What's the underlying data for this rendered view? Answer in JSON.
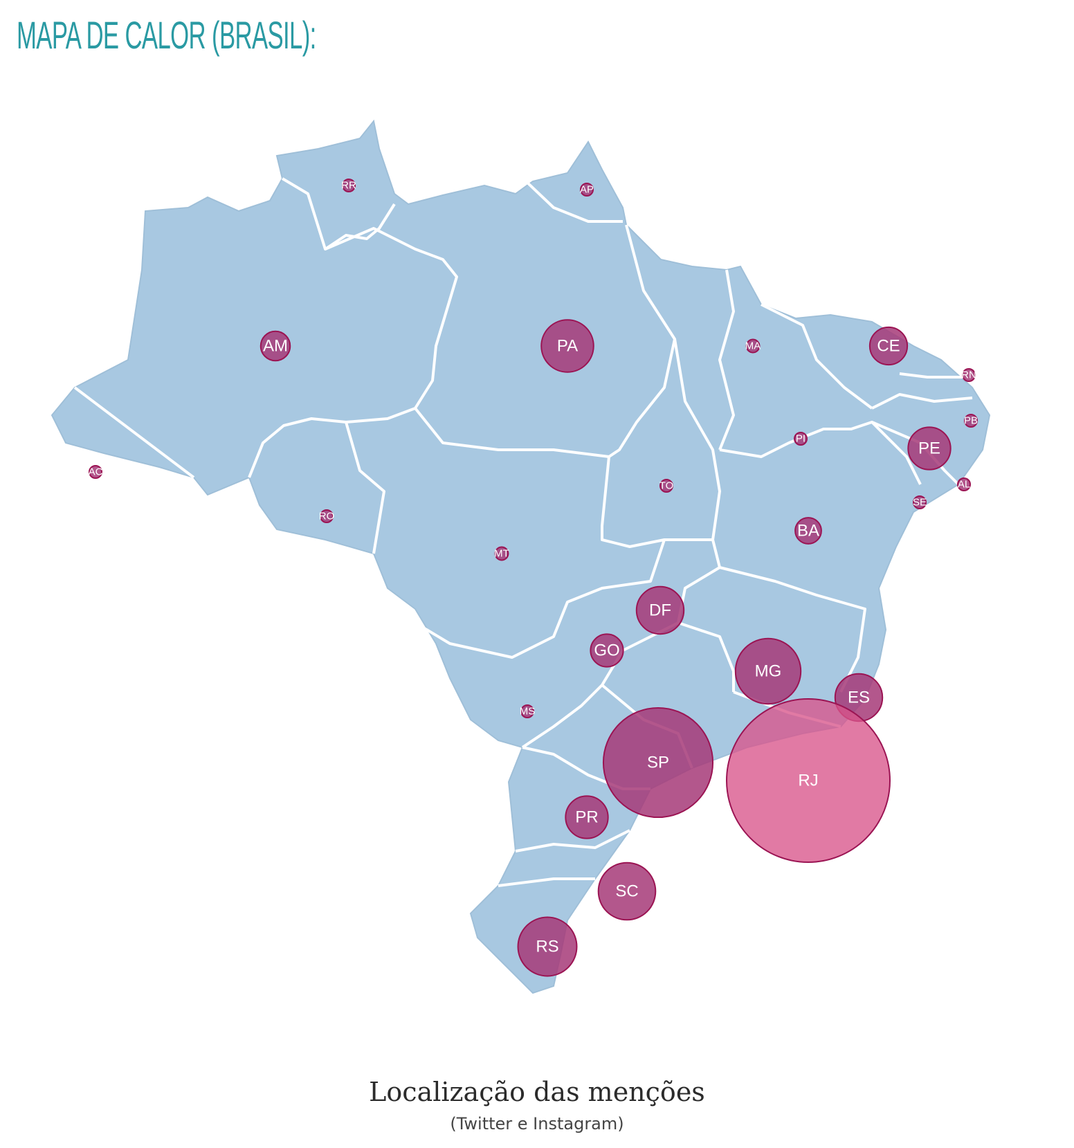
{
  "header": {
    "title": "MAPA DE CALOR (BRASIL):"
  },
  "caption": {
    "title": "Localização das menções",
    "subtitle": "(Twitter e Instagram)"
  },
  "colors": {
    "land": "#a8c8e1",
    "border": "#ffffff",
    "bubble_fill": "#a63a78",
    "bubble_fill_light": "#d9558a",
    "bubble_stroke": "#9b1453",
    "title": "#2a9aa3"
  },
  "map_data": {
    "type": "bubble-map",
    "region": "Brasil",
    "states": [
      {
        "code": "RR",
        "relative_size": 0.06
      },
      {
        "code": "AP",
        "relative_size": 0.06
      },
      {
        "code": "AM",
        "relative_size": 0.18
      },
      {
        "code": "PA",
        "relative_size": 0.32
      },
      {
        "code": "MA",
        "relative_size": 0.08
      },
      {
        "code": "CE",
        "relative_size": 0.23
      },
      {
        "code": "RN",
        "relative_size": 0.06
      },
      {
        "code": "PB",
        "relative_size": 0.06
      },
      {
        "code": "PI",
        "relative_size": 0.06
      },
      {
        "code": "PE",
        "relative_size": 0.26
      },
      {
        "code": "AL",
        "relative_size": 0.06
      },
      {
        "code": "SE",
        "relative_size": 0.06
      },
      {
        "code": "AC",
        "relative_size": 0.05
      },
      {
        "code": "RO",
        "relative_size": 0.07
      },
      {
        "code": "TO",
        "relative_size": 0.06
      },
      {
        "code": "BA",
        "relative_size": 0.16
      },
      {
        "code": "MT",
        "relative_size": 0.08
      },
      {
        "code": "DF",
        "relative_size": 0.29
      },
      {
        "code": "GO",
        "relative_size": 0.2
      },
      {
        "code": "MG",
        "relative_size": 0.4
      },
      {
        "code": "ES",
        "relative_size": 0.29
      },
      {
        "code": "MS",
        "relative_size": 0.07
      },
      {
        "code": "SP",
        "relative_size": 0.67
      },
      {
        "code": "RJ",
        "relative_size": 1.0
      },
      {
        "code": "PR",
        "relative_size": 0.26
      },
      {
        "code": "SC",
        "relative_size": 0.35
      },
      {
        "code": "RS",
        "relative_size": 0.36
      }
    ]
  }
}
